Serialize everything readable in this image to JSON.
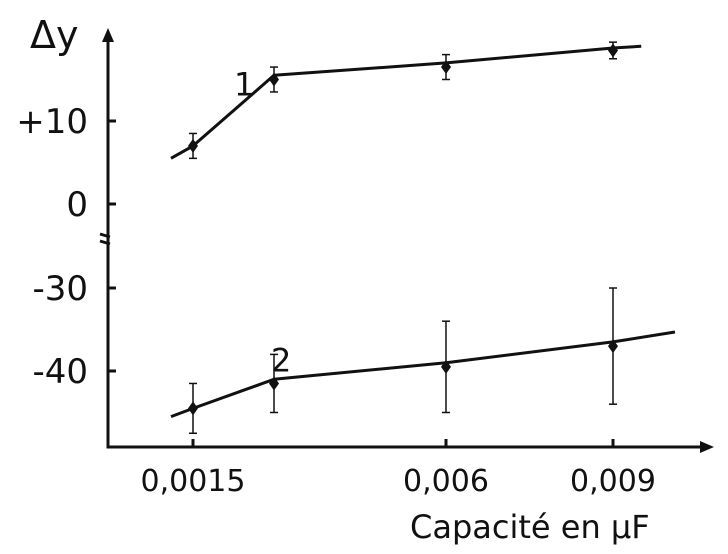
{
  "chart_data": {
    "type": "line",
    "title": "",
    "xlabel": "Capacité en µF",
    "ylabel": "Δy",
    "y_axis_break": true,
    "x_ticks": [
      {
        "value": 0.0015,
        "label": "0,0015"
      },
      {
        "value": 0.006,
        "label": "0,006"
      },
      {
        "value": 0.009,
        "label": "0,009"
      }
    ],
    "y_ticks_upper": [
      {
        "value": 10,
        "label": "+10"
      },
      {
        "value": 0,
        "label": "0"
      }
    ],
    "y_ticks_lower": [
      {
        "value": -30,
        "label": "-30"
      },
      {
        "value": -40,
        "label": "-40"
      }
    ],
    "series": [
      {
        "label": "1",
        "points": [
          {
            "x": 0.0015,
            "y": 7,
            "err": 1.5
          },
          {
            "x": 0.003,
            "y": 15,
            "err": 1.5
          },
          {
            "x": 0.006,
            "y": 16.5,
            "err": 1.5
          },
          {
            "x": 0.009,
            "y": 18.5,
            "err": 1
          }
        ],
        "curve": [
          [
            0.0012,
            5.5
          ],
          [
            0.0015,
            7
          ],
          [
            0.003,
            15.5
          ],
          [
            0.006,
            17
          ],
          [
            0.009,
            18.8
          ],
          [
            0.0095,
            19
          ]
        ]
      },
      {
        "label": "2",
        "points": [
          {
            "x": 0.0015,
            "y": -44.5,
            "err": 3
          },
          {
            "x": 0.003,
            "y": -41.5,
            "err": 3.5
          },
          {
            "x": 0.006,
            "y": -39.5,
            "err": 5.5
          },
          {
            "x": 0.009,
            "y": -37,
            "err": 7
          }
        ],
        "curve": [
          [
            0.0012,
            -45.5
          ],
          [
            0.0015,
            -44.5
          ],
          [
            0.003,
            -41
          ],
          [
            0.006,
            -39
          ],
          [
            0.009,
            -36.5
          ],
          [
            0.0101,
            -35.3
          ]
        ]
      }
    ]
  }
}
